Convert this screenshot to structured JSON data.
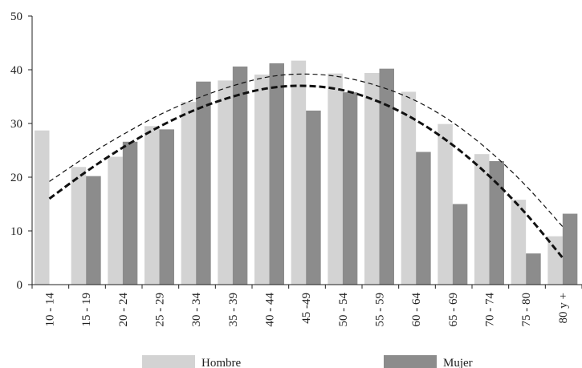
{
  "chart_data": {
    "type": "bar",
    "categories": [
      "10 - 14",
      "15 - 19",
      "20 - 24",
      "25 - 29",
      "30 - 34",
      "35 - 39",
      "40 - 44",
      "45 -49",
      "50 - 54",
      "55 - 59",
      "60 - 64",
      "65 - 69",
      "70 - 74",
      "75 - 80",
      "80 y +"
    ],
    "series": [
      {
        "name": "Hombre",
        "color": "#d3d3d3",
        "values": [
          28.7,
          21.9,
          23.8,
          29.5,
          34.0,
          38.0,
          39.1,
          41.7,
          39.3,
          39.4,
          35.9,
          29.9,
          24.3,
          15.8,
          9.0
        ]
      },
      {
        "name": "Mujer",
        "color": "#8c8c8c",
        "values": [
          null,
          20.2,
          26.6,
          28.9,
          37.8,
          40.6,
          41.2,
          32.4,
          35.8,
          40.2,
          24.7,
          15.0,
          23.0,
          5.8,
          13.2
        ]
      }
    ],
    "trendlines": [
      {
        "series": "Hombre",
        "style": "dashed-thin",
        "color": "#111111",
        "values": [
          19.2,
          23.8,
          27.9,
          31.6,
          34.6,
          37.0,
          38.7,
          39.2,
          38.6,
          36.9,
          34.2,
          30.2,
          24.9,
          18.4,
          10.8
        ]
      },
      {
        "series": "Mujer",
        "style": "dashed-thick",
        "color": "#111111",
        "values": [
          16.0,
          21.0,
          25.5,
          29.4,
          32.6,
          35.0,
          36.6,
          37.0,
          36.2,
          34.0,
          30.6,
          26.0,
          20.2,
          13.2,
          5.0
        ]
      }
    ],
    "ylim": [
      0,
      50
    ],
    "yticks": [
      0,
      10,
      20,
      30,
      40,
      50
    ],
    "title": "",
    "xlabel": "",
    "ylabel": "",
    "grid": false,
    "legend_position": "bottom"
  }
}
